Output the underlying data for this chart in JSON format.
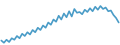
{
  "values": [
    3.0,
    1.5,
    3.5,
    2.0,
    4.5,
    3.5,
    6.0,
    4.5,
    7.5,
    6.0,
    8.5,
    7.0,
    10.0,
    8.5,
    11.5,
    10.0,
    13.0,
    11.5,
    15.0,
    13.5,
    17.0,
    15.5,
    19.5,
    17.0,
    21.0,
    18.5,
    22.5,
    19.0,
    24.0,
    21.5,
    22.0,
    20.5,
    23.5,
    22.0,
    24.5,
    22.5,
    25.5,
    23.5,
    26.0,
    24.0,
    25.0,
    22.5,
    23.0,
    20.0,
    18.0,
    15.0
  ],
  "line_color": "#4a9cc7",
  "line_width": 1.2,
  "background_color": "#ffffff",
  "ylim_min": 0,
  "ylim_max": 30
}
